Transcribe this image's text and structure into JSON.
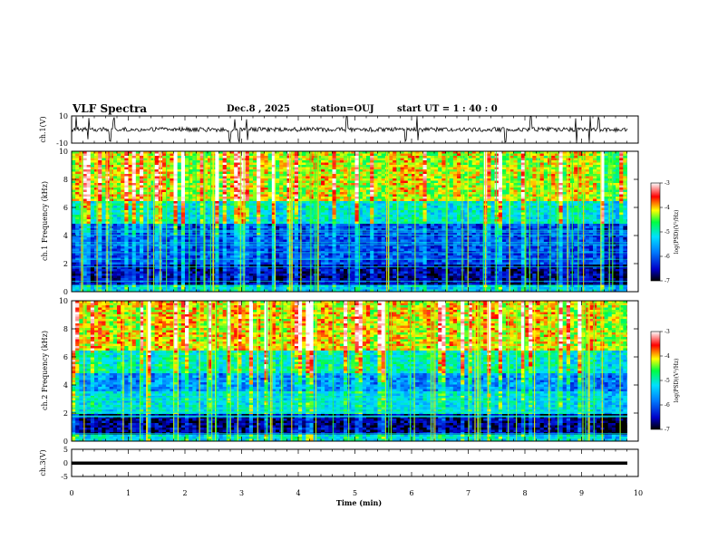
{
  "header": {
    "title": "VLF Spectra",
    "date": "Dec.8 , 2025",
    "station": "station=OUJ",
    "start_ut": "start UT = 1 : 40 : 0"
  },
  "chart_data": [
    {
      "type": "line",
      "name": "ch1-waveform",
      "ylabel": "ch.1(V)",
      "ylim": [
        -10,
        10
      ],
      "yticks": [
        "10",
        "-10"
      ],
      "xlim": [
        0,
        10
      ],
      "baseline": 0,
      "spikes_at_min": [
        0.08,
        0.3,
        0.68,
        0.75,
        2.8,
        2.88,
        2.95,
        3.1,
        4.85,
        5.9,
        6.1,
        7.65,
        8.1,
        8.9,
        9.15,
        9.3
      ]
    },
    {
      "type": "heatmap",
      "name": "ch1-spectrogram",
      "ylabel": "ch.1 Frequency (kHz)",
      "xlim": [
        0,
        10
      ],
      "ylim": [
        0,
        10
      ],
      "yticks": [
        "0",
        "2",
        "4",
        "6",
        "8",
        "10"
      ],
      "colorbar": {
        "label": "log(PSD)(V²/Hz)",
        "range": [
          -7,
          -3
        ],
        "ticks": [
          "-3",
          "-4",
          "-5",
          "-6",
          "-7"
        ]
      },
      "bands_log_psd": [
        {
          "f_khz": [
            0,
            0.5
          ],
          "value": -5.3
        },
        {
          "f_khz": [
            0.5,
            2.0
          ],
          "value": -6.6
        },
        {
          "f_khz": [
            2.0,
            4.8
          ],
          "value": -6.1
        },
        {
          "f_khz": [
            4.8,
            6.5
          ],
          "value": -5.1
        },
        {
          "f_khz": [
            6.5,
            10
          ],
          "value": -4.2
        }
      ]
    },
    {
      "type": "heatmap",
      "name": "ch2-spectrogram",
      "ylabel": "ch.2 Frequency (kHz)",
      "xlim": [
        0,
        10
      ],
      "ylim": [
        0,
        10
      ],
      "yticks": [
        "0",
        "2",
        "4",
        "6",
        "8",
        "10"
      ],
      "colorbar": {
        "label": "log(PSD)(V²/Hz)",
        "range": [
          -7,
          -3
        ],
        "ticks": [
          "-3",
          "-4",
          "-5",
          "-6",
          "-7"
        ]
      },
      "bands_log_psd": [
        {
          "f_khz": [
            0,
            0.5
          ],
          "value": -5.2
        },
        {
          "f_khz": [
            0.5,
            2.0
          ],
          "value": -6.7
        },
        {
          "f_khz": [
            2.0,
            3.5
          ],
          "value": -5.2
        },
        {
          "f_khz": [
            3.5,
            4.8
          ],
          "value": -5.7
        },
        {
          "f_khz": [
            4.8,
            6.5
          ],
          "value": -5.0
        },
        {
          "f_khz": [
            6.5,
            10
          ],
          "value": -4.1
        }
      ]
    },
    {
      "type": "line",
      "name": "ch3-trace",
      "ylabel": "ch.3(V)",
      "ylim": [
        -5,
        5
      ],
      "yticks": [
        "5",
        "0",
        "-5"
      ],
      "xlim": [
        0,
        10
      ],
      "level": 0
    }
  ],
  "x_axis": {
    "label": "Time (min)",
    "ticks": [
      "0",
      "1",
      "2",
      "3",
      "4",
      "5",
      "6",
      "7",
      "8",
      "9",
      "10"
    ]
  }
}
